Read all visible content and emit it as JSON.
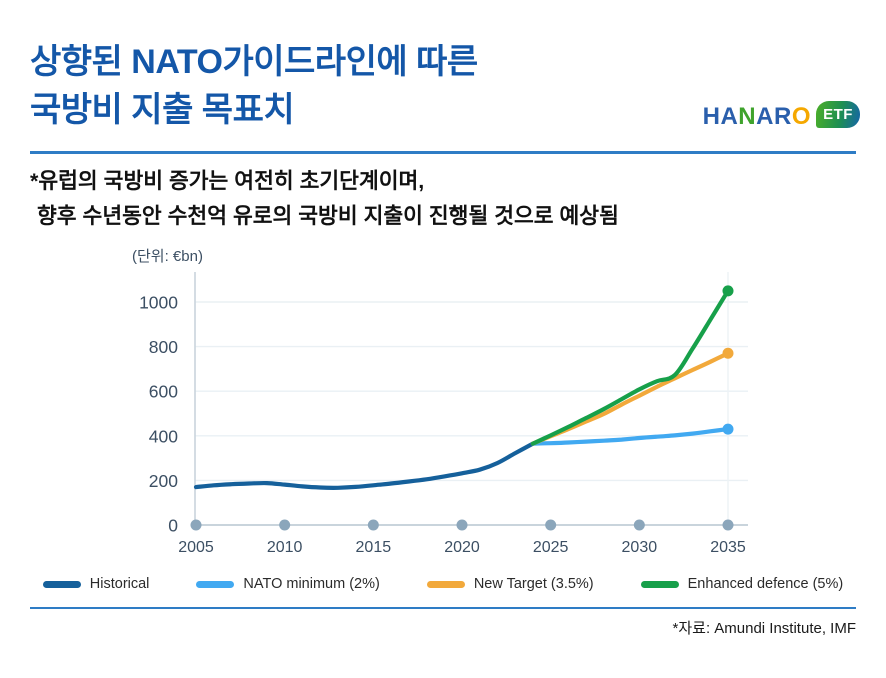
{
  "header": {
    "title_line1": "상향된 NATO가이드라인에 따른",
    "title_line2": "국방비 지출 목표치",
    "logo": {
      "letters": [
        {
          "ch": "H",
          "color": "#2A5FAC"
        },
        {
          "ch": "A",
          "color": "#2A5FAC"
        },
        {
          "ch": "N",
          "color": "#3FA32C"
        },
        {
          "ch": "A",
          "color": "#2A5FAC"
        },
        {
          "ch": "R",
          "color": "#2A5FAC"
        },
        {
          "ch": "O",
          "color": "#F5A800"
        }
      ],
      "badge_text": "ETF"
    }
  },
  "subtitle": {
    "line1": "*유럽의 국방비 증가는 여전히 초기단계이며,",
    "line2": "향후 수년동안 수천억 유로의 국방비 지출이 진행될 것으로 예상됨"
  },
  "chart_data": {
    "type": "line",
    "unit_label": "(단위: €bn)",
    "xlabel": "",
    "ylabel": "€bn",
    "x_ticks": [
      2005,
      2010,
      2015,
      2020,
      2025,
      2030,
      2035
    ],
    "y_ticks": [
      0,
      200,
      400,
      600,
      800,
      1000
    ],
    "xlim": [
      2005,
      2035
    ],
    "ylim": [
      0,
      1100
    ],
    "grid": "horizontal",
    "legend_position": "bottom",
    "colors": {
      "axis": "#C9D4DC",
      "grid": "#EAF0F4",
      "faint_vgrid": "#EDF2F6",
      "tick_dot": "#8BA6BB",
      "tick_label": "#3C4F63"
    },
    "series": [
      {
        "name": "Historical",
        "color": "#15609B",
        "end_dot": false,
        "x": [
          2005,
          2006,
          2007,
          2008,
          2009,
          2010,
          2011,
          2012,
          2013,
          2014,
          2015,
          2016,
          2017,
          2018,
          2019,
          2020,
          2021,
          2022,
          2023,
          2024
        ],
        "values": [
          170,
          178,
          183,
          186,
          188,
          181,
          173,
          168,
          167,
          171,
          178,
          186,
          195,
          205,
          218,
          232,
          248,
          278,
          322,
          365
        ]
      },
      {
        "name": "NATO minimum (2%)",
        "color": "#41A9F1",
        "end_dot": true,
        "x": [
          2024,
          2025,
          2026,
          2027,
          2028,
          2029,
          2030,
          2031,
          2032,
          2033,
          2034,
          2035
        ],
        "values": [
          365,
          367,
          370,
          374,
          378,
          383,
          390,
          396,
          402,
          410,
          420,
          430
        ]
      },
      {
        "name": "New Target (3.5%)",
        "color": "#F2A93B",
        "end_dot": true,
        "x": [
          2024,
          2025,
          2026,
          2027,
          2028,
          2029,
          2030,
          2031,
          2032,
          2033,
          2034,
          2035
        ],
        "values": [
          365,
          398,
          430,
          464,
          498,
          540,
          580,
          620,
          658,
          695,
          732,
          770
        ]
      },
      {
        "name": "Enhanced defence (5%)",
        "color": "#17A04A",
        "end_dot": true,
        "x": [
          2024,
          2025,
          2026,
          2027,
          2028,
          2029,
          2030,
          2031,
          2032,
          2033,
          2034,
          2035
        ],
        "values": [
          365,
          402,
          440,
          480,
          520,
          564,
          608,
          645,
          672,
          790,
          920,
          1050
        ]
      }
    ]
  },
  "footer": {
    "source": "*자료: Amundi Institute, IMF"
  }
}
